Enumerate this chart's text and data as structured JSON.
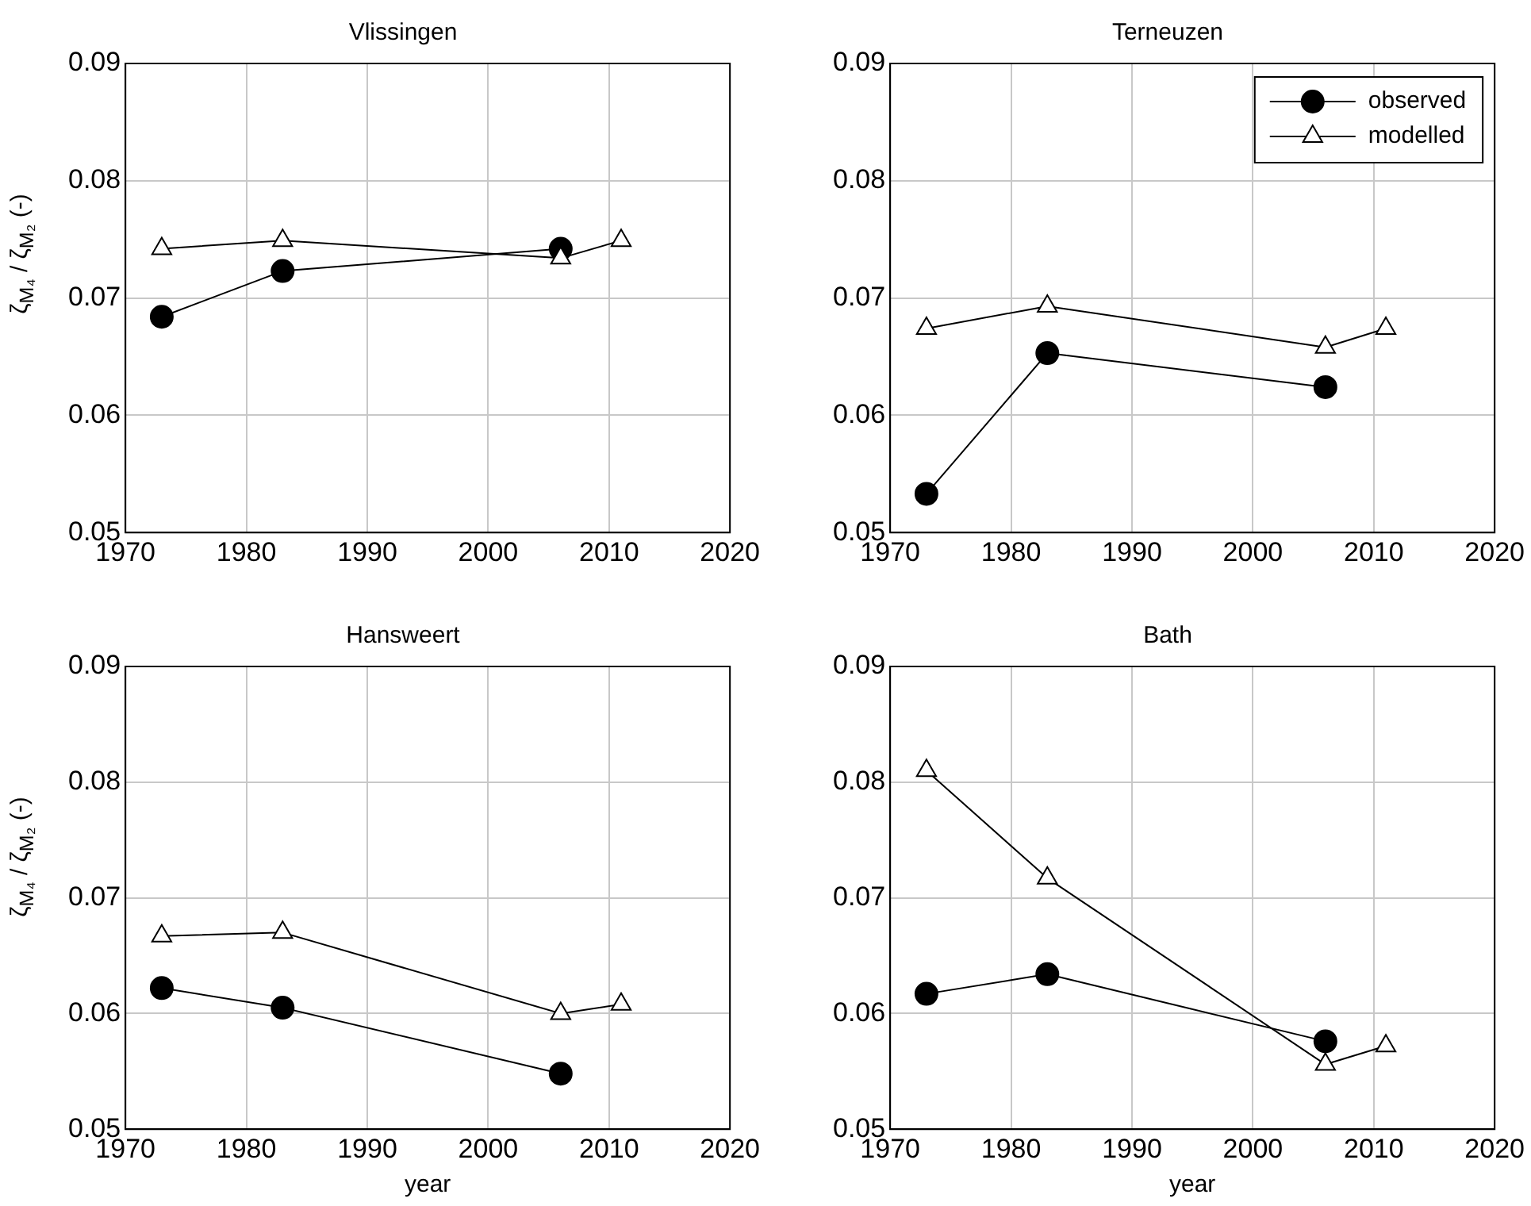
{
  "chart_data": [
    {
      "type": "line",
      "title": "Vlissingen",
      "ylabel": "ζ$_{M₄}$ / ζ$_{M₂}$ (-)",
      "xlim": [
        1970,
        2020
      ],
      "xticks": [
        1970,
        1980,
        1990,
        2000,
        2010,
        2020
      ],
      "ylim": [
        0.05,
        0.09
      ],
      "yticks": [
        0.05,
        0.06,
        0.07,
        0.08,
        0.09
      ],
      "grid": true,
      "legend": false,
      "series": [
        {
          "color": "#000000",
          "marker": "circle",
          "x": [
            1973,
            1983,
            2006
          ],
          "values": [
            0.0684,
            0.0723,
            0.0742
          ]
        },
        {
          "color": "#000000",
          "marker": "triangle",
          "x": [
            1973,
            1983,
            2006,
            2011
          ],
          "values": [
            0.0742,
            0.0749,
            0.0734,
            0.0749
          ]
        }
      ]
    },
    {
      "type": "line",
      "title": "Terneuzen",
      "xlim": [
        1970,
        2020
      ],
      "xticks": [
        1970,
        1980,
        1990,
        2000,
        2010,
        2020
      ],
      "ylim": [
        0.05,
        0.09
      ],
      "yticks": [
        0.05,
        0.06,
        0.07,
        0.08,
        0.09
      ],
      "grid": true,
      "legend": "top right",
      "series": [
        {
          "name": "observed",
          "color": "#000000",
          "marker": "circle",
          "x": [
            1973,
            1983,
            2006
          ],
          "values": [
            0.0533,
            0.0653,
            0.0624
          ]
        },
        {
          "name": "modelled",
          "color": "#000000",
          "marker": "triangle",
          "x": [
            1973,
            1983,
            2006,
            2011
          ],
          "values": [
            0.0674,
            0.0693,
            0.0658,
            0.0674
          ]
        }
      ]
    },
    {
      "type": "line",
      "title": "Hansweert",
      "xlabel": "year",
      "ylabel": "ζ$_{M₄}$ / ζ$_{M₂}$ (-)",
      "xlim": [
        1970,
        2020
      ],
      "xticks": [
        1970,
        1980,
        1990,
        2000,
        2010,
        2020
      ],
      "ylim": [
        0.05,
        0.09
      ],
      "yticks": [
        0.05,
        0.06,
        0.07,
        0.08,
        0.09
      ],
      "grid": true,
      "legend": false,
      "series": [
        {
          "color": "#000000",
          "marker": "circle",
          "x": [
            1973,
            1983,
            2006
          ],
          "values": [
            0.0622,
            0.0605,
            0.0548
          ]
        },
        {
          "color": "#000000",
          "marker": "triangle",
          "x": [
            1973,
            1983,
            2006,
            2011
          ],
          "values": [
            0.0667,
            0.067,
            0.06,
            0.0608
          ]
        }
      ]
    },
    {
      "type": "line",
      "title": "Bath",
      "xlabel": "year",
      "xlim": [
        1970,
        2020
      ],
      "xticks": [
        1970,
        1980,
        1990,
        2000,
        2010,
        2020
      ],
      "ylim": [
        0.05,
        0.09
      ],
      "yticks": [
        0.05,
        0.06,
        0.07,
        0.08,
        0.09
      ],
      "grid": true,
      "legend": false,
      "series": [
        {
          "color": "#000000",
          "marker": "circle",
          "x": [
            1973,
            1983,
            2006
          ],
          "values": [
            0.0617,
            0.0634,
            0.0576
          ]
        },
        {
          "color": "#000000",
          "marker": "triangle",
          "x": [
            1973,
            1983,
            2006,
            2011
          ],
          "values": [
            0.081,
            0.0717,
            0.0556,
            0.0572
          ]
        }
      ]
    }
  ]
}
